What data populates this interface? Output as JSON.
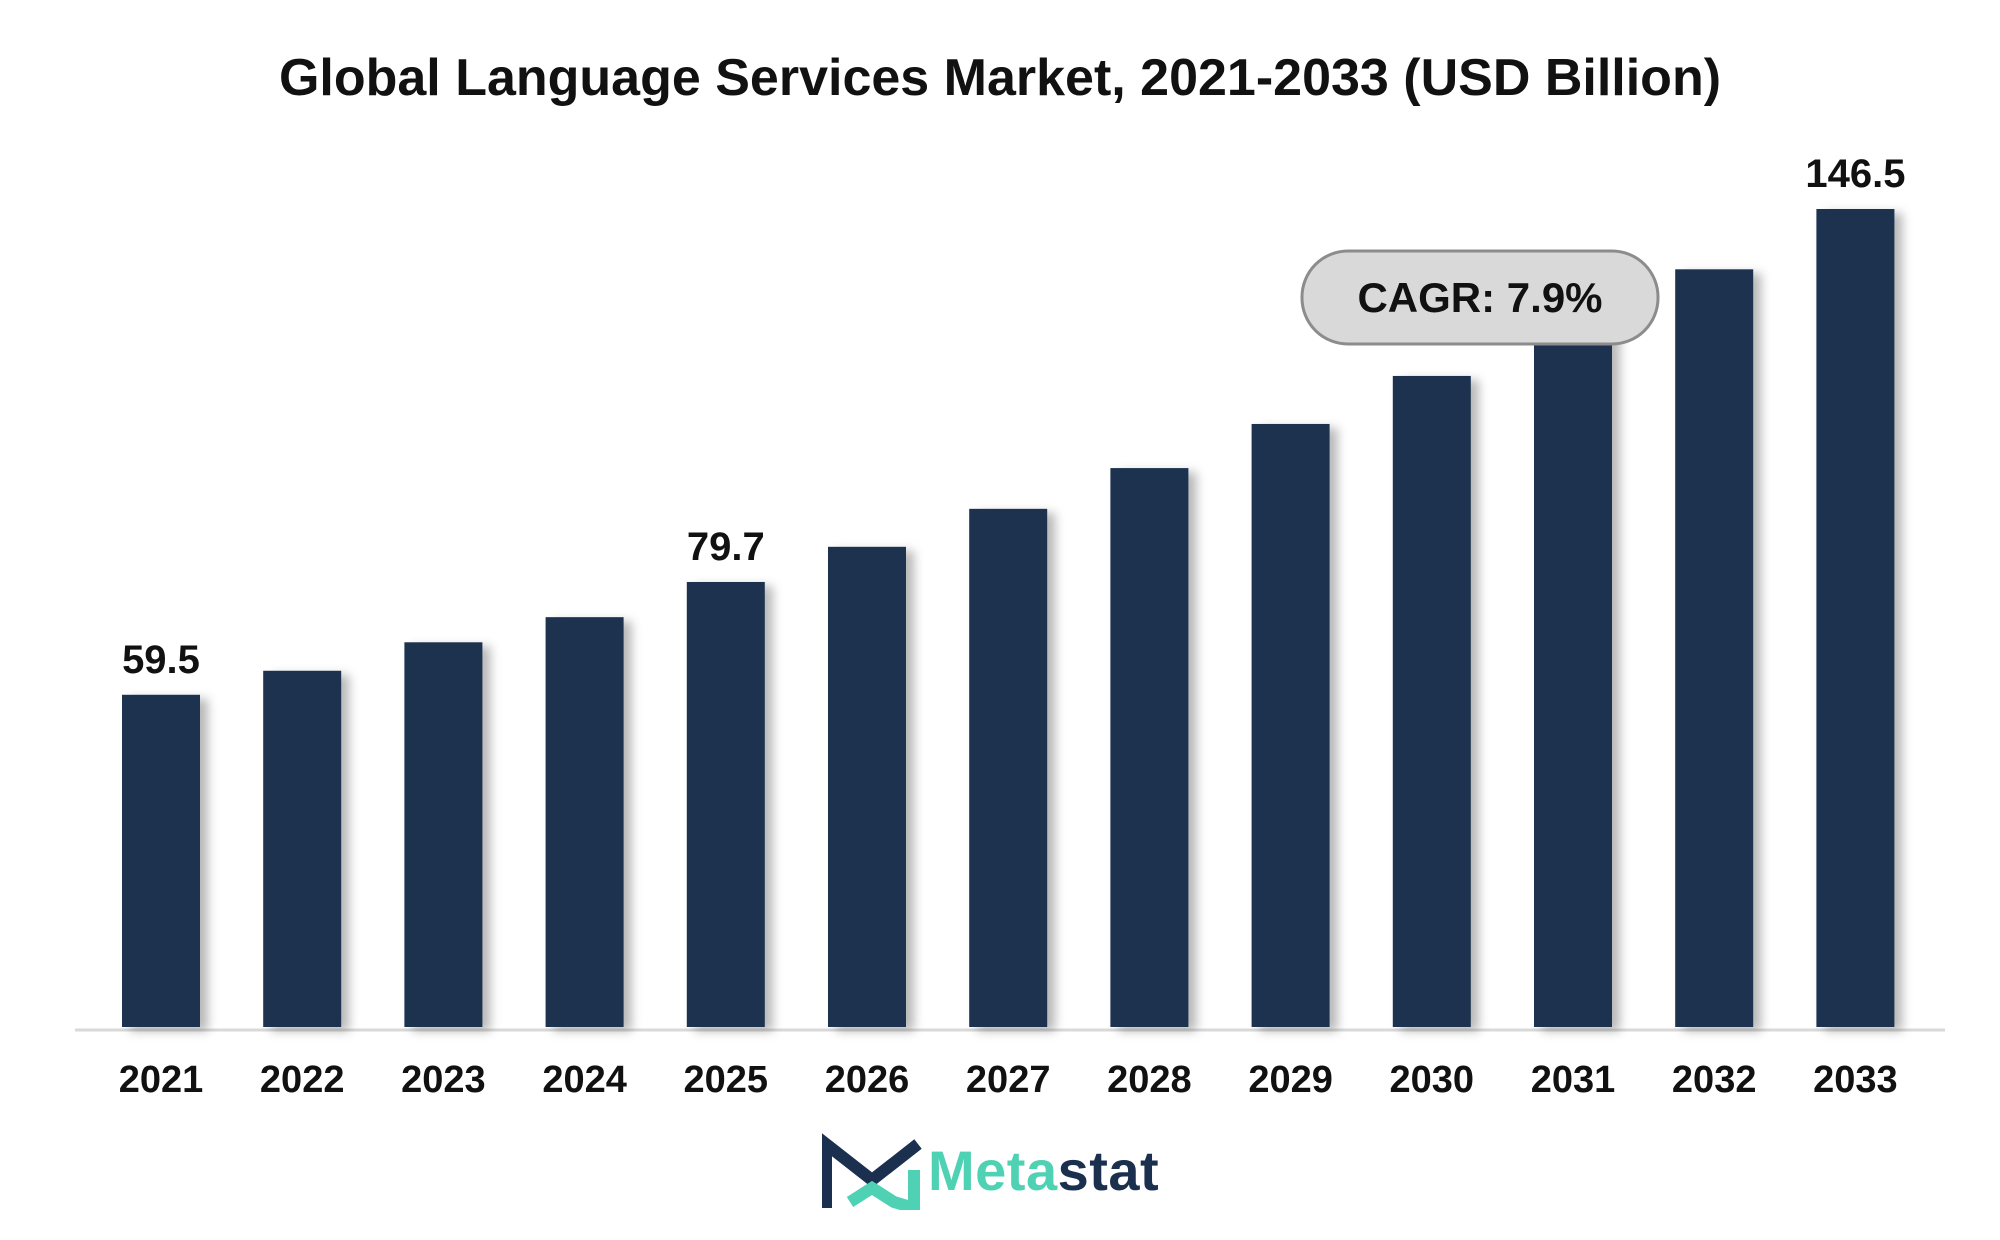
{
  "page": {
    "title": "Global Language Services Market, 2021-2033 (USD Billion)"
  },
  "badge": {
    "text": "CAGR: 7.9%"
  },
  "logo": {
    "part1": "Meta",
    "part2": "stat"
  },
  "colors": {
    "bar": "#1b3150",
    "axis": "#d9d9d9",
    "badge_fill": "#d9d9d9",
    "badge_stroke": "#8c8c8c",
    "text": "#111111",
    "logo_accent": "#4fd1b4",
    "logo_dark": "#1b2f4f"
  },
  "chart_data": {
    "type": "bar",
    "title": "Global Language Services Market, 2021-2033 (USD Billion)",
    "categories": [
      "2021",
      "2022",
      "2023",
      "2024",
      "2025",
      "2026",
      "2027",
      "2028",
      "2029",
      "2030",
      "2031",
      "2032",
      "2033"
    ],
    "values": [
      59.5,
      63.8,
      68.9,
      73.4,
      79.7,
      86.0,
      92.8,
      100.1,
      108.0,
      116.6,
      125.8,
      135.7,
      146.5
    ],
    "data_labels": [
      "59.5",
      "",
      "",
      "",
      "79.7",
      "",
      "",
      "",
      "",
      "",
      "",
      "",
      "146.5"
    ],
    "ylim": [
      0,
      160
    ],
    "grid": false,
    "annotation": "CAGR: 7.9%"
  }
}
